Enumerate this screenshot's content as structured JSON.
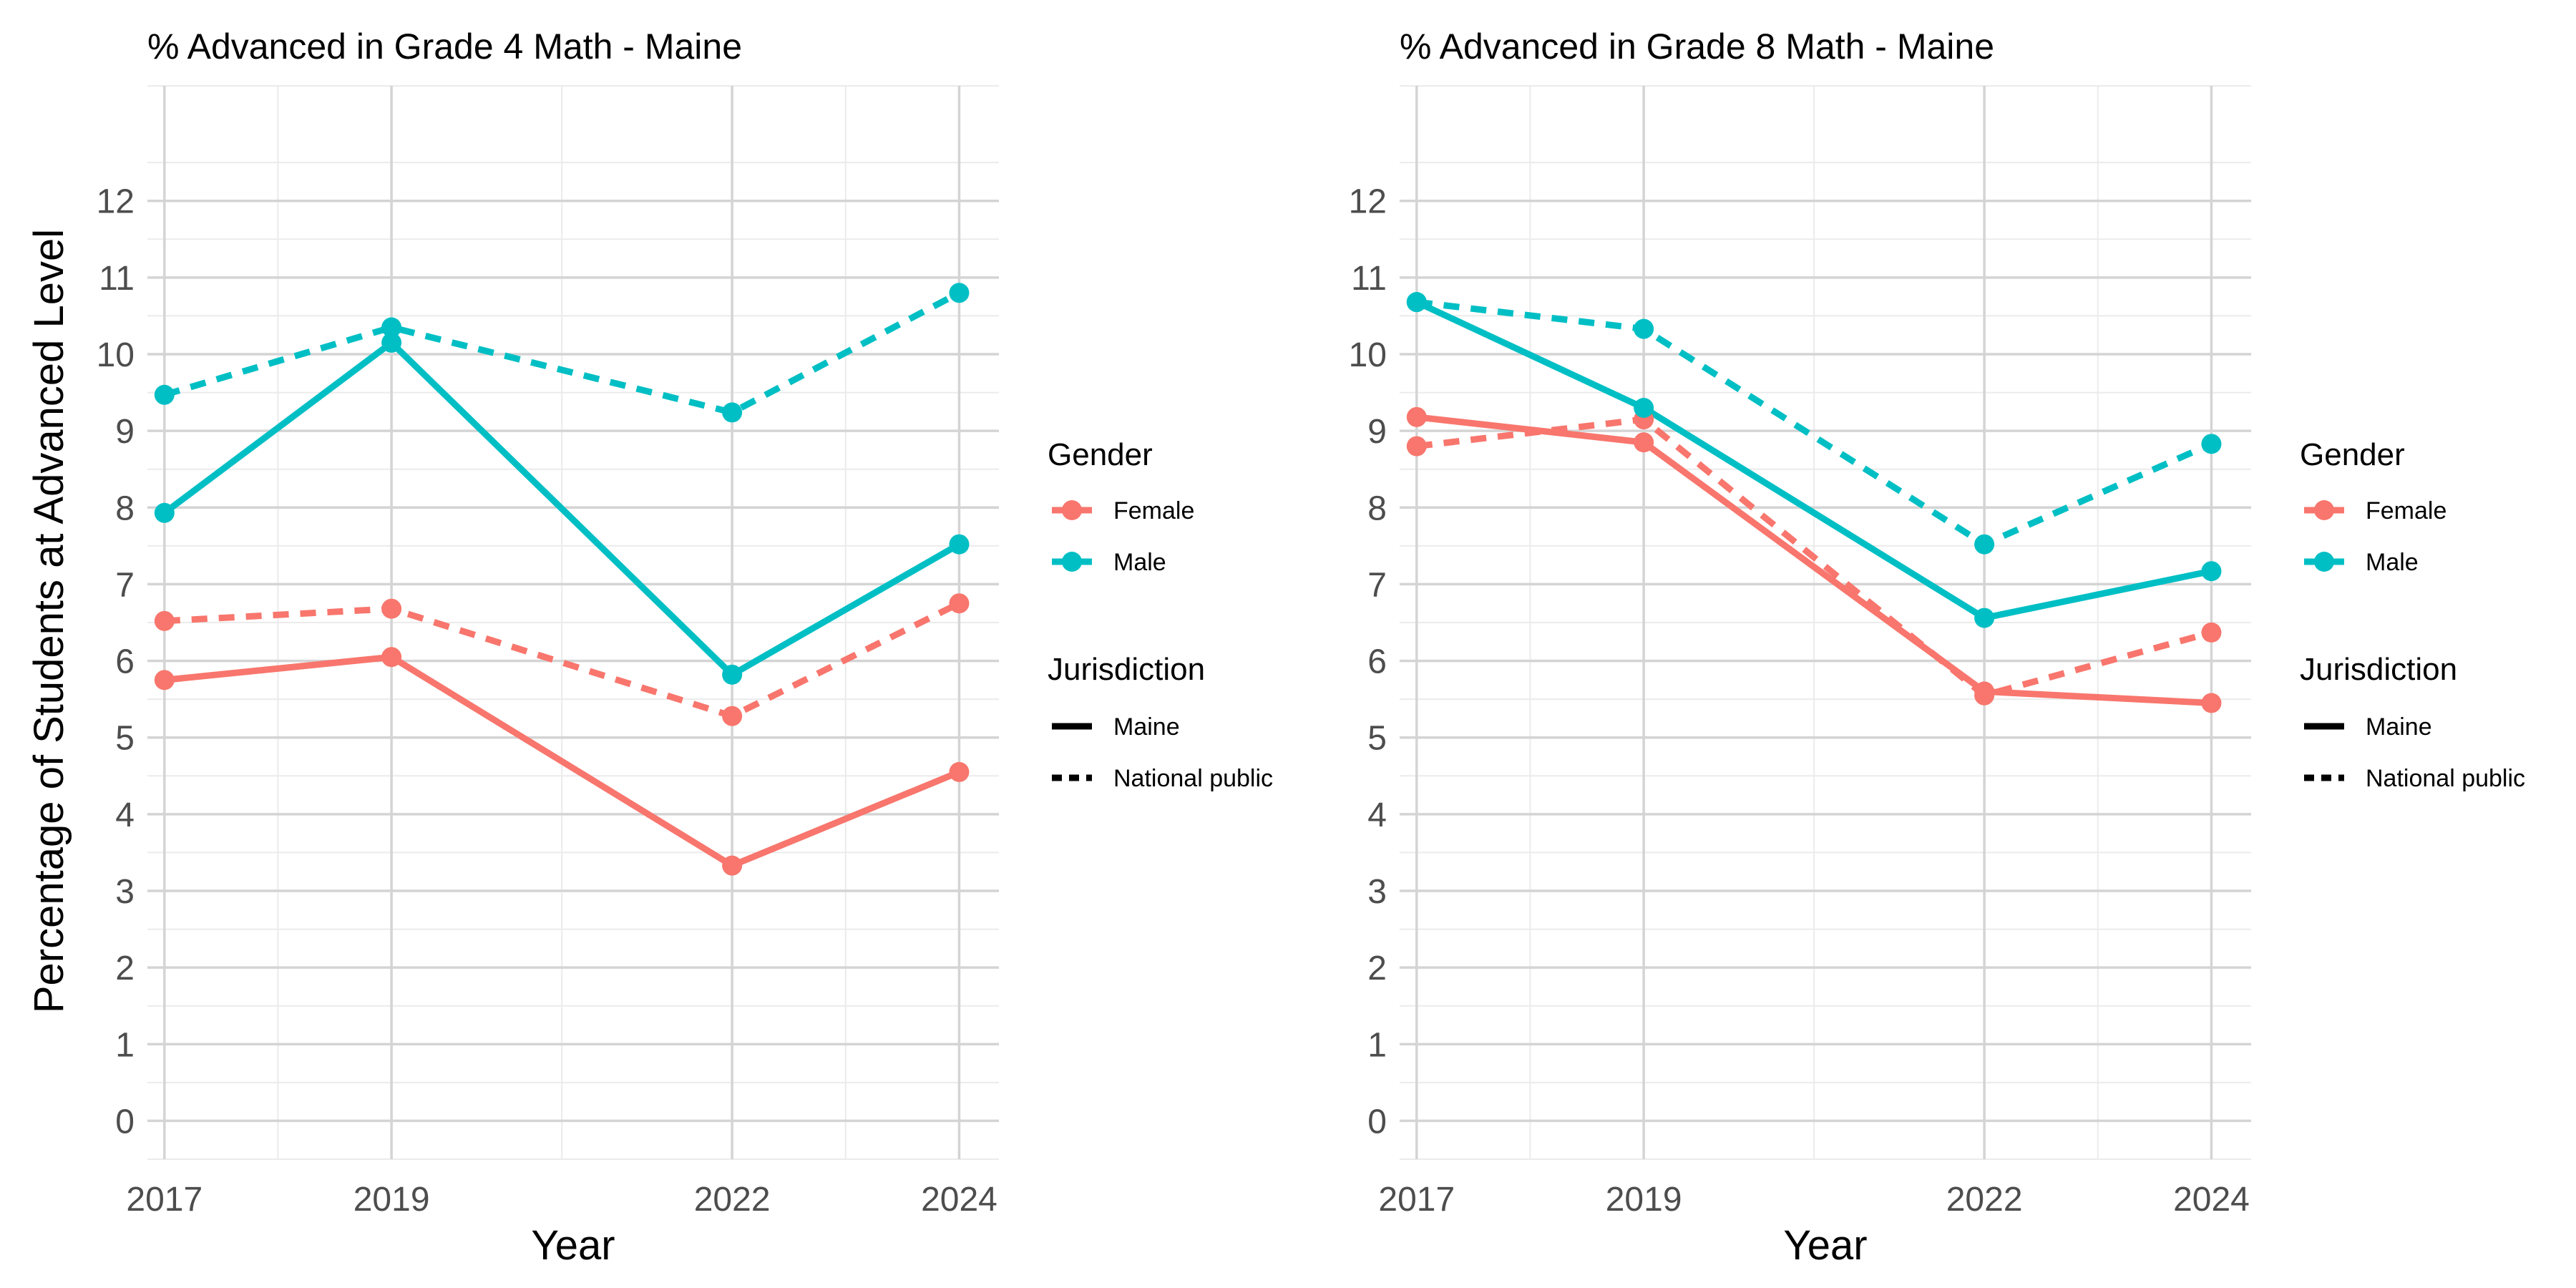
{
  "figure": {
    "ylabel": "Percentage of Students at Advanced Level",
    "xlabel": "Year"
  },
  "legend": {
    "gender_title": "Gender",
    "jurisdiction_title": "Jurisdiction",
    "gender_items": [
      {
        "label": "Female",
        "color": "#F8766D"
      },
      {
        "label": "Male",
        "color": "#00BFC4"
      }
    ],
    "jurisdiction_items": [
      {
        "label": "Maine",
        "linestyle": "solid"
      },
      {
        "label": "National public",
        "linestyle": "dashed"
      }
    ]
  },
  "chart_data": [
    {
      "type": "line",
      "title": "% Advanced in Grade 4 Math - Maine",
      "xlabel": "Year",
      "ylabel": "Percentage of Students at Advanced Level",
      "x": [
        2017,
        2019,
        2022,
        2024
      ],
      "xticks": [
        "2017",
        "2019",
        "2022",
        "2024"
      ],
      "xlim": [
        2016.85,
        2024.35
      ],
      "ylim": [
        -0.5,
        13.5
      ],
      "yticks": [
        0,
        1,
        2,
        3,
        4,
        5,
        6,
        7,
        8,
        9,
        10,
        11,
        12
      ],
      "grid": true,
      "series": [
        {
          "gender": "Female",
          "jurisdiction": "Maine",
          "values": [
            5.75,
            6.05,
            3.33,
            4.55
          ]
        },
        {
          "gender": "Female",
          "jurisdiction": "National public",
          "values": [
            6.52,
            6.68,
            5.28,
            6.75
          ]
        },
        {
          "gender": "Male",
          "jurisdiction": "Maine",
          "values": [
            7.93,
            10.15,
            5.82,
            7.52
          ]
        },
        {
          "gender": "Male",
          "jurisdiction": "National public",
          "values": [
            9.47,
            10.35,
            9.24,
            10.8
          ]
        }
      ]
    },
    {
      "type": "line",
      "title": "% Advanced in Grade 8 Math - Maine",
      "xlabel": "Year",
      "ylabel": "Percentage of Students at Advanced Level",
      "x": [
        2017,
        2019,
        2022,
        2024
      ],
      "xticks": [
        "2017",
        "2019",
        "2022",
        "2024"
      ],
      "xlim": [
        2016.85,
        2024.35
      ],
      "ylim": [
        -0.5,
        13.5
      ],
      "yticks": [
        0,
        1,
        2,
        3,
        4,
        5,
        6,
        7,
        8,
        9,
        10,
        11,
        12
      ],
      "grid": true,
      "series": [
        {
          "gender": "Female",
          "jurisdiction": "Maine",
          "values": [
            9.18,
            8.85,
            5.6,
            5.45
          ]
        },
        {
          "gender": "Female",
          "jurisdiction": "National public",
          "values": [
            8.8,
            9.15,
            5.55,
            6.37
          ]
        },
        {
          "gender": "Male",
          "jurisdiction": "Maine",
          "values": [
            10.68,
            9.3,
            6.56,
            7.17
          ]
        },
        {
          "gender": "Male",
          "jurisdiction": "National public",
          "values": [
            10.68,
            10.33,
            7.52,
            8.83
          ]
        }
      ]
    }
  ]
}
